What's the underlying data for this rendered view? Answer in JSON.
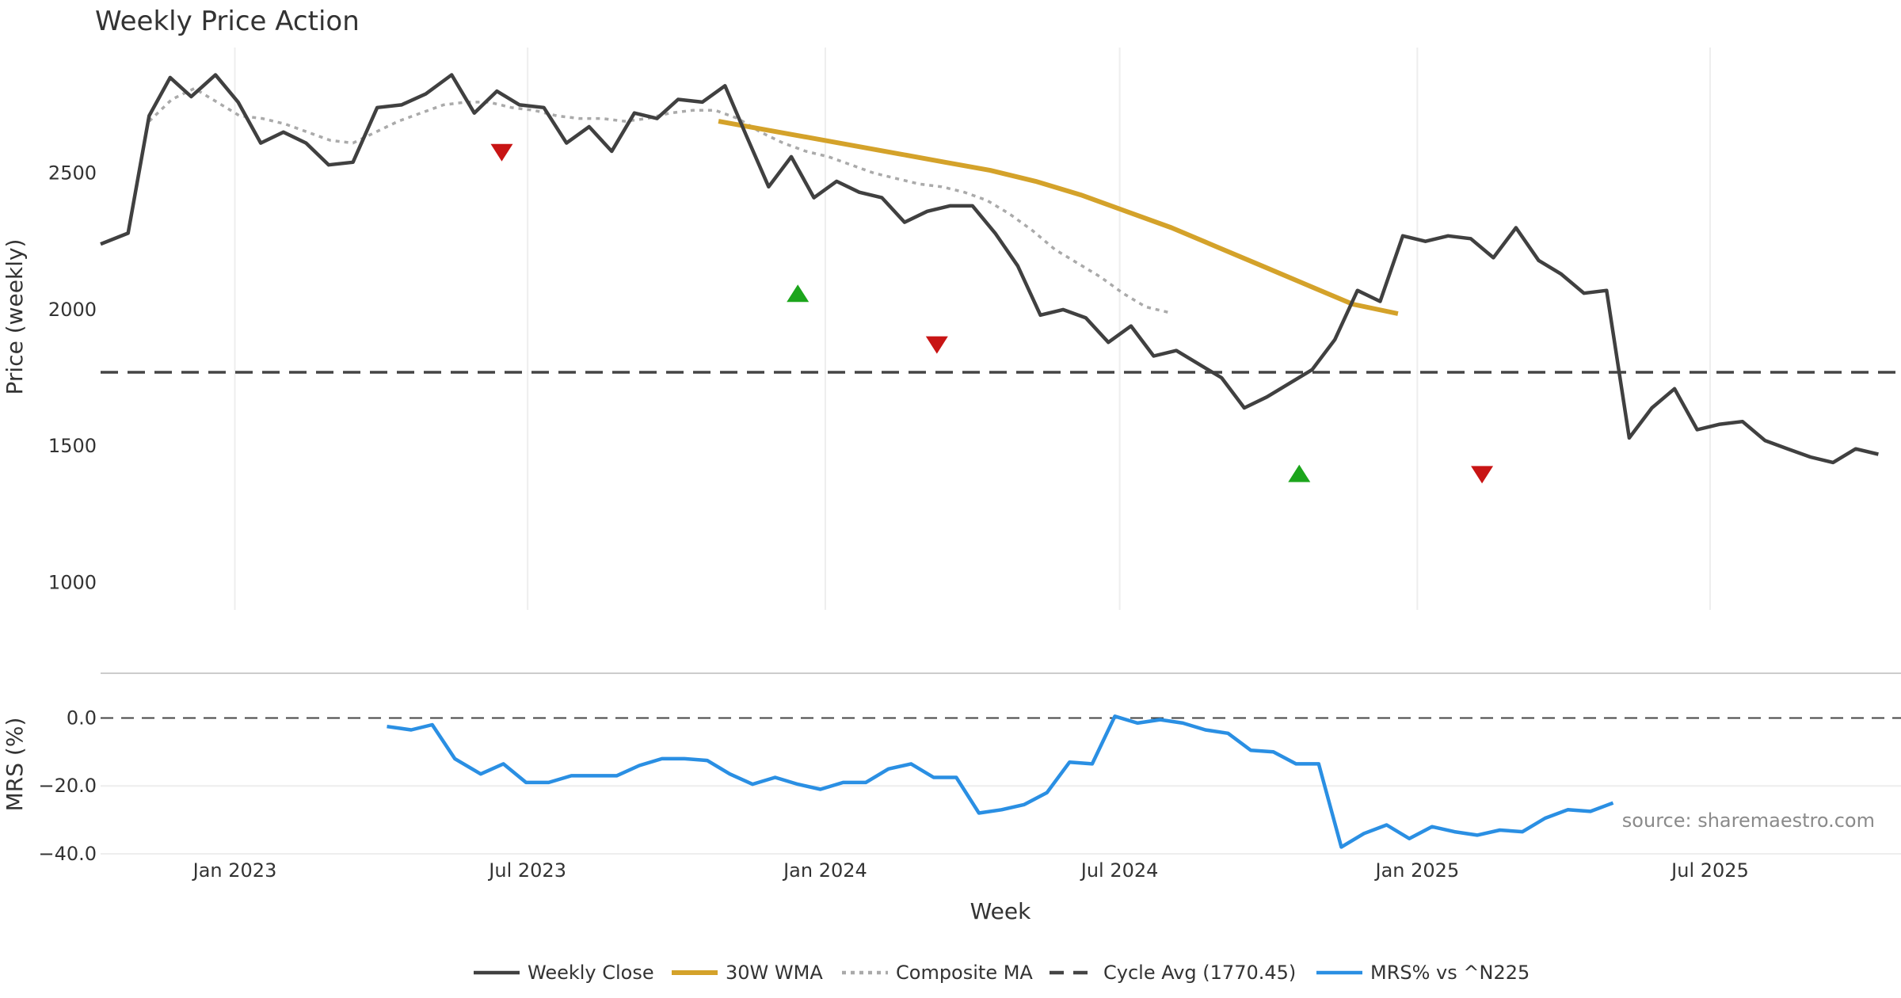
{
  "chart_data": {
    "type": "line",
    "title": "Weekly Price Action",
    "xlabel": "Week",
    "source": "source: sharemaestro.com",
    "colors": {
      "close": "#404040",
      "wma": "#d4a22a",
      "composite": "#aaaaaa",
      "cycle": "#444444",
      "mrs": "#2a8fe3",
      "buy": "#1ca51c",
      "sell": "#c81414",
      "grid": "#eeeeee"
    },
    "x_ticks": [
      {
        "label": "Jan 2023",
        "date": "2023-01-01"
      },
      {
        "label": "Jul 2023",
        "date": "2023-07-01"
      },
      {
        "label": "Jan 2024",
        "date": "2024-01-01"
      },
      {
        "label": "Jul 2024",
        "date": "2024-07-01"
      },
      {
        "label": "Jan 2025",
        "date": "2025-01-01"
      },
      {
        "label": "Jul 2025",
        "date": "2025-07-01"
      }
    ],
    "x_range": [
      "2022-10-10",
      "2025-10-27"
    ],
    "price_panel": {
      "ylabel": "Price (weekly)",
      "ylim": [
        900,
        2960
      ],
      "y_ticks": [
        1000,
        1500,
        2000,
        2500
      ],
      "cycle_avg": 1770.45,
      "weekly_close": [
        [
          "2022-10-10",
          2240
        ],
        [
          "2022-10-27",
          2280
        ],
        [
          "2022-11-09",
          2710
        ],
        [
          "2022-11-22",
          2850
        ],
        [
          "2022-12-05",
          2780
        ],
        [
          "2022-12-20",
          2860
        ],
        [
          "2023-01-03",
          2760
        ],
        [
          "2023-01-17",
          2610
        ],
        [
          "2023-01-31",
          2650
        ],
        [
          "2023-02-14",
          2610
        ],
        [
          "2023-02-28",
          2530
        ],
        [
          "2023-03-15",
          2540
        ],
        [
          "2023-03-30",
          2740
        ],
        [
          "2023-04-14",
          2750
        ],
        [
          "2023-04-29",
          2790
        ],
        [
          "2023-05-15",
          2860
        ],
        [
          "2023-05-29",
          2720
        ],
        [
          "2023-06-12",
          2800
        ],
        [
          "2023-06-26",
          2750
        ],
        [
          "2023-07-11",
          2740
        ],
        [
          "2023-07-25",
          2610
        ],
        [
          "2023-08-08",
          2670
        ],
        [
          "2023-08-22",
          2580
        ],
        [
          "2023-09-05",
          2720
        ],
        [
          "2023-09-19",
          2700
        ],
        [
          "2023-10-02",
          2770
        ],
        [
          "2023-10-17",
          2760
        ],
        [
          "2023-10-31",
          2820
        ],
        [
          "2023-11-13",
          2640
        ],
        [
          "2023-11-27",
          2450
        ],
        [
          "2023-12-11",
          2560
        ],
        [
          "2023-12-25",
          2410
        ],
        [
          "2024-01-08",
          2470
        ],
        [
          "2024-01-22",
          2430
        ],
        [
          "2024-02-05",
          2410
        ],
        [
          "2024-02-19",
          2320
        ],
        [
          "2024-03-04",
          2360
        ],
        [
          "2024-03-18",
          2380
        ],
        [
          "2024-04-01",
          2380
        ],
        [
          "2024-04-15",
          2280
        ],
        [
          "2024-04-29",
          2160
        ],
        [
          "2024-05-13",
          1980
        ],
        [
          "2024-05-27",
          2000
        ],
        [
          "2024-06-10",
          1970
        ],
        [
          "2024-06-24",
          1880
        ],
        [
          "2024-07-08",
          1940
        ],
        [
          "2024-07-22",
          1830
        ],
        [
          "2024-08-05",
          1850
        ],
        [
          "2024-08-19",
          1800
        ],
        [
          "2024-09-02",
          1750
        ],
        [
          "2024-09-16",
          1640
        ],
        [
          "2024-09-30",
          1680
        ],
        [
          "2024-10-14",
          1730
        ],
        [
          "2024-10-28",
          1780
        ],
        [
          "2024-11-11",
          1890
        ],
        [
          "2024-11-25",
          2070
        ],
        [
          "2024-12-09",
          2030
        ],
        [
          "2024-12-23",
          2270
        ],
        [
          "2025-01-06",
          2250
        ],
        [
          "2025-01-20",
          2270
        ],
        [
          "2025-02-03",
          2260
        ],
        [
          "2025-02-17",
          2190
        ],
        [
          "2025-03-03",
          2300
        ],
        [
          "2025-03-17",
          2180
        ],
        [
          "2025-03-31",
          2130
        ],
        [
          "2025-04-14",
          2060
        ],
        [
          "2025-04-28",
          2070
        ],
        [
          "2025-05-12",
          1530
        ],
        [
          "2025-05-26",
          1640
        ],
        [
          "2025-06-09",
          1710
        ],
        [
          "2025-06-23",
          1560
        ],
        [
          "2025-07-07",
          1580
        ],
        [
          "2025-07-21",
          1590
        ],
        [
          "2025-08-04",
          1520
        ],
        [
          "2025-08-18",
          1490
        ],
        [
          "2025-09-01",
          1460
        ],
        [
          "2025-09-15",
          1440
        ],
        [
          "2025-09-29",
          1490
        ],
        [
          "2025-10-13",
          1470
        ]
      ],
      "wma": [
        [
          "2023-10-27",
          2690
        ],
        [
          "2023-11-24",
          2660
        ],
        [
          "2023-12-22",
          2630
        ],
        [
          "2024-01-19",
          2600
        ],
        [
          "2024-02-16",
          2570
        ],
        [
          "2024-03-15",
          2540
        ],
        [
          "2024-04-12",
          2510
        ],
        [
          "2024-05-10",
          2470
        ],
        [
          "2024-06-07",
          2420
        ],
        [
          "2024-07-05",
          2360
        ],
        [
          "2024-08-02",
          2300
        ],
        [
          "2024-08-30",
          2230
        ],
        [
          "2024-09-27",
          2160
        ],
        [
          "2024-10-25",
          2090
        ],
        [
          "2024-11-22",
          2020
        ],
        [
          "2024-12-20",
          1985
        ]
      ],
      "composite": [
        [
          "2022-11-09",
          2690
        ],
        [
          "2022-11-23",
          2770
        ],
        [
          "2022-12-07",
          2810
        ],
        [
          "2022-12-21",
          2760
        ],
        [
          "2023-01-04",
          2710
        ],
        [
          "2023-01-18",
          2700
        ],
        [
          "2023-02-01",
          2680
        ],
        [
          "2023-02-15",
          2650
        ],
        [
          "2023-03-01",
          2620
        ],
        [
          "2023-03-15",
          2610
        ],
        [
          "2023-03-29",
          2650
        ],
        [
          "2023-04-12",
          2690
        ],
        [
          "2023-04-26",
          2720
        ],
        [
          "2023-05-10",
          2750
        ],
        [
          "2023-05-24",
          2760
        ],
        [
          "2023-06-07",
          2760
        ],
        [
          "2023-06-21",
          2740
        ],
        [
          "2023-07-05",
          2730
        ],
        [
          "2023-07-19",
          2710
        ],
        [
          "2023-08-02",
          2700
        ],
        [
          "2023-08-16",
          2700
        ],
        [
          "2023-08-30",
          2690
        ],
        [
          "2023-09-13",
          2700
        ],
        [
          "2023-09-27",
          2720
        ],
        [
          "2023-10-11",
          2730
        ],
        [
          "2023-10-25",
          2730
        ],
        [
          "2023-11-08",
          2700
        ],
        [
          "2023-11-22",
          2650
        ],
        [
          "2023-12-06",
          2610
        ],
        [
          "2023-12-20",
          2580
        ],
        [
          "2024-01-03",
          2560
        ],
        [
          "2024-01-17",
          2530
        ],
        [
          "2024-01-31",
          2500
        ],
        [
          "2024-02-14",
          2480
        ],
        [
          "2024-02-28",
          2460
        ],
        [
          "2024-03-13",
          2450
        ],
        [
          "2024-03-27",
          2430
        ],
        [
          "2024-04-10",
          2400
        ],
        [
          "2024-04-24",
          2350
        ],
        [
          "2024-05-08",
          2290
        ],
        [
          "2024-05-22",
          2220
        ],
        [
          "2024-06-05",
          2170
        ],
        [
          "2024-06-19",
          2120
        ],
        [
          "2024-07-03",
          2060
        ],
        [
          "2024-07-17",
          2010
        ],
        [
          "2024-07-31",
          1990
        ]
      ],
      "signals": [
        {
          "type": "sell",
          "date": "2023-06-15",
          "price": 2575
        },
        {
          "type": "buy",
          "date": "2023-12-15",
          "price": 2060
        },
        {
          "type": "sell",
          "date": "2024-03-10",
          "price": 1870
        },
        {
          "type": "buy",
          "date": "2024-10-20",
          "price": 1400
        },
        {
          "type": "sell",
          "date": "2025-02-10",
          "price": 1395
        }
      ]
    },
    "mrs_panel": {
      "ylabel": "MRS (%)",
      "ylim": [
        -40,
        12
      ],
      "y_ticks": [
        -40,
        -20,
        0
      ],
      "y_tick_labels": [
        "−40.0",
        "−20.0",
        "0.0"
      ],
      "mrs": [
        [
          "2023-04-05",
          -2.5
        ],
        [
          "2023-04-20",
          -3.5
        ],
        [
          "2023-05-03",
          -2
        ],
        [
          "2023-05-17",
          -12
        ],
        [
          "2023-06-02",
          -16.5
        ],
        [
          "2023-06-16",
          -13.5
        ],
        [
          "2023-06-30",
          -19
        ],
        [
          "2023-07-14",
          -19
        ],
        [
          "2023-07-28",
          -17
        ],
        [
          "2023-08-11",
          -17
        ],
        [
          "2023-08-25",
          -17
        ],
        [
          "2023-09-08",
          -14
        ],
        [
          "2023-09-22",
          -12
        ],
        [
          "2023-10-06",
          -12
        ],
        [
          "2023-10-20",
          -12.5
        ],
        [
          "2023-11-03",
          -16.5
        ],
        [
          "2023-11-17",
          -19.5
        ],
        [
          "2023-12-01",
          -17.5
        ],
        [
          "2023-12-15",
          -19.5
        ],
        [
          "2023-12-29",
          -21
        ],
        [
          "2024-01-12",
          -19
        ],
        [
          "2024-01-26",
          -19
        ],
        [
          "2024-02-09",
          -15
        ],
        [
          "2024-02-23",
          -13.5
        ],
        [
          "2024-03-08",
          -17.5
        ],
        [
          "2024-03-22",
          -17.5
        ],
        [
          "2024-04-05",
          -28
        ],
        [
          "2024-04-19",
          -27
        ],
        [
          "2024-05-03",
          -25.5
        ],
        [
          "2024-05-17",
          -22
        ],
        [
          "2024-05-31",
          -13
        ],
        [
          "2024-06-14",
          -13.5
        ],
        [
          "2024-06-28",
          0.5
        ],
        [
          "2024-07-12",
          -1.5
        ],
        [
          "2024-07-26",
          -0.5
        ],
        [
          "2024-08-09",
          -1.5
        ],
        [
          "2024-08-23",
          -3.5
        ],
        [
          "2024-09-06",
          -4.5
        ],
        [
          "2024-09-20",
          -9.5
        ],
        [
          "2024-10-04",
          -10
        ],
        [
          "2024-10-18",
          -13.5
        ],
        [
          "2024-11-01",
          -13.5
        ],
        [
          "2024-11-15",
          -38
        ],
        [
          "2024-11-29",
          -34
        ],
        [
          "2024-12-13",
          -31.5
        ],
        [
          "2024-12-27",
          -35.5
        ],
        [
          "2025-01-10",
          -32
        ],
        [
          "2025-01-24",
          -33.5
        ],
        [
          "2025-02-07",
          -34.5
        ],
        [
          "2025-02-21",
          -33
        ],
        [
          "2025-03-07",
          -33.5
        ],
        [
          "2025-03-21",
          -29.5
        ],
        [
          "2025-04-04",
          -27
        ],
        [
          "2025-04-18",
          -27.5
        ],
        [
          "2025-05-02",
          -25
        ]
      ]
    },
    "legend": [
      {
        "key": "close",
        "label": "Weekly Close",
        "style": "solid"
      },
      {
        "key": "wma",
        "label": "30W WMA",
        "style": "solid"
      },
      {
        "key": "composite",
        "label": "Composite MA",
        "style": "dotted"
      },
      {
        "key": "cycle",
        "label": "Cycle Avg (1770.45)",
        "style": "dashed"
      },
      {
        "key": "mrs",
        "label": "MRS% vs ^N225",
        "style": "solid"
      }
    ]
  }
}
